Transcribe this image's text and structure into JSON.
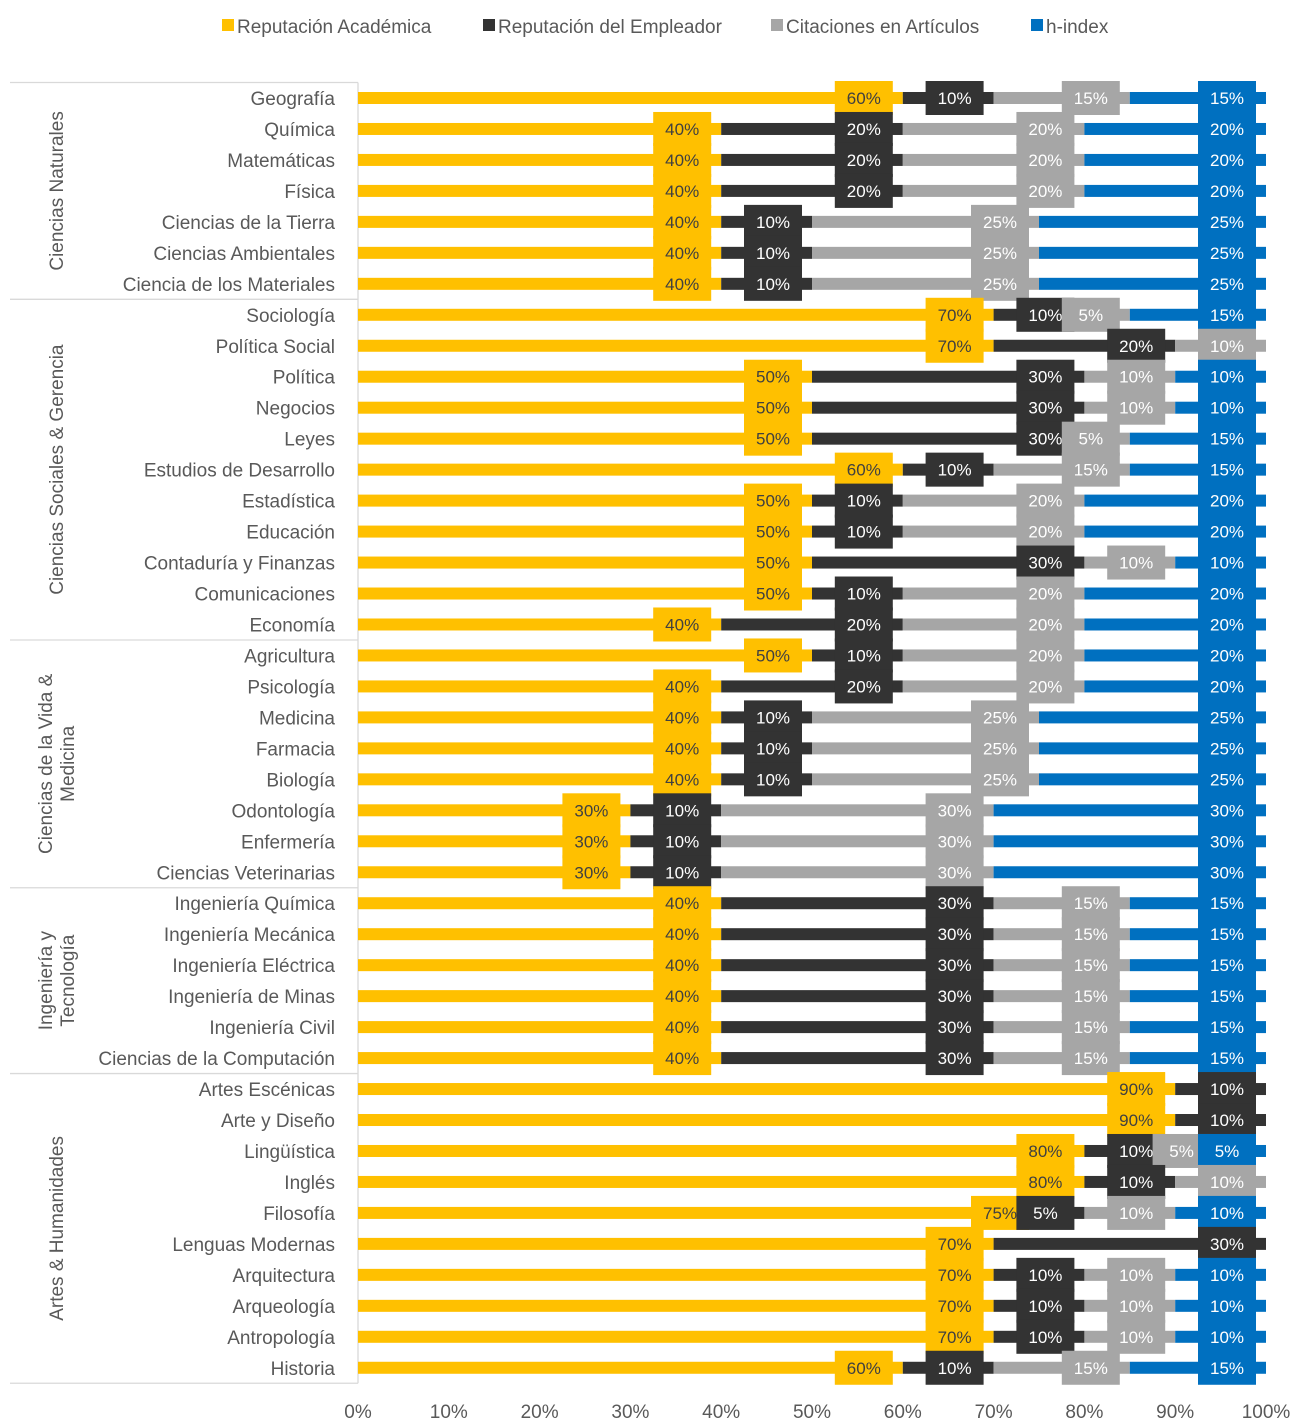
{
  "colors": {
    "Reputación Académica": "#FFC000",
    "Reputación del Empleador": "#333333",
    "Citaciones en Artículos": "#A6A6A6",
    "h-index": "#0070C0"
  },
  "chart_data": {
    "type": "bar",
    "orientation": "horizontal",
    "stacked": "percent",
    "legend_position": "top",
    "grid": false,
    "xlim": [
      0,
      100
    ],
    "x_ticks": [
      "0%",
      "10%",
      "20%",
      "30%",
      "40%",
      "50%",
      "60%",
      "70%",
      "80%",
      "90%",
      "100%"
    ],
    "series_names": [
      "Reputación Académica",
      "Reputación del Empleador",
      "Citaciones en Artículos",
      "h-index"
    ],
    "groups": [
      {
        "name": "Ciencias Naturales",
        "categories": [
          {
            "name": "Geografía",
            "values": [
              60,
              10,
              15,
              15
            ]
          },
          {
            "name": "Química",
            "values": [
              40,
              20,
              20,
              20
            ]
          },
          {
            "name": "Matemáticas",
            "values": [
              40,
              20,
              20,
              20
            ]
          },
          {
            "name": "Física",
            "values": [
              40,
              20,
              20,
              20
            ]
          },
          {
            "name": "Ciencias de la Tierra",
            "values": [
              40,
              10,
              25,
              25
            ]
          },
          {
            "name": "Ciencias Ambientales",
            "values": [
              40,
              10,
              25,
              25
            ]
          },
          {
            "name": "Ciencia de los Materiales",
            "values": [
              40,
              10,
              25,
              25
            ]
          }
        ]
      },
      {
        "name": "Ciencias Sociales & Gerencia",
        "categories": [
          {
            "name": "Sociología",
            "values": [
              70,
              10,
              5,
              15
            ]
          },
          {
            "name": "Política Social",
            "values": [
              70,
              20,
              10,
              0
            ]
          },
          {
            "name": "Política",
            "values": [
              50,
              30,
              10,
              10
            ]
          },
          {
            "name": "Negocios",
            "values": [
              50,
              30,
              10,
              10
            ]
          },
          {
            "name": "Leyes",
            "values": [
              50,
              30,
              5,
              15
            ]
          },
          {
            "name": "Estudios de Desarrollo",
            "values": [
              60,
              10,
              15,
              15
            ]
          },
          {
            "name": "Estadística",
            "values": [
              50,
              10,
              20,
              20
            ]
          },
          {
            "name": "Educación",
            "values": [
              50,
              10,
              20,
              20
            ]
          },
          {
            "name": "Contaduría y Finanzas",
            "values": [
              50,
              30,
              10,
              10
            ]
          },
          {
            "name": "Comunicaciones",
            "values": [
              50,
              10,
              20,
              20
            ]
          },
          {
            "name": "Economía",
            "values": [
              40,
              20,
              20,
              20
            ]
          }
        ]
      },
      {
        "name": "Ciencias de la Vida & Medicina",
        "categories": [
          {
            "name": "Agricultura",
            "values": [
              50,
              10,
              20,
              20
            ]
          },
          {
            "name": "Psicología",
            "values": [
              40,
              20,
              20,
              20
            ]
          },
          {
            "name": "Medicina",
            "values": [
              40,
              10,
              25,
              25
            ]
          },
          {
            "name": "Farmacia",
            "values": [
              40,
              10,
              25,
              25
            ]
          },
          {
            "name": "Biología",
            "values": [
              40,
              10,
              25,
              25
            ]
          },
          {
            "name": "Odontología",
            "values": [
              30,
              10,
              30,
              30
            ]
          },
          {
            "name": "Enfermería",
            "values": [
              30,
              10,
              30,
              30
            ]
          },
          {
            "name": "Ciencias Veterinarias",
            "values": [
              30,
              10,
              30,
              30
            ]
          }
        ]
      },
      {
        "name": "Ingeniería y Tecnología",
        "categories": [
          {
            "name": "Ingeniería Química",
            "values": [
              40,
              30,
              15,
              15
            ]
          },
          {
            "name": "Ingeniería Mecánica",
            "values": [
              40,
              30,
              15,
              15
            ]
          },
          {
            "name": "Ingeniería Eléctrica",
            "values": [
              40,
              30,
              15,
              15
            ]
          },
          {
            "name": "Ingeniería de Minas",
            "values": [
              40,
              30,
              15,
              15
            ]
          },
          {
            "name": "Ingeniería Civil",
            "values": [
              40,
              30,
              15,
              15
            ]
          },
          {
            "name": "Ciencias de la Computación",
            "values": [
              40,
              30,
              15,
              15
            ]
          }
        ]
      },
      {
        "name": "Artes & Humanidades",
        "categories": [
          {
            "name": "Artes Escénicas",
            "values": [
              90,
              10,
              0,
              0
            ]
          },
          {
            "name": "Arte y Diseño",
            "values": [
              90,
              10,
              0,
              0
            ]
          },
          {
            "name": "Lingüística",
            "values": [
              80,
              10,
              5,
              5
            ]
          },
          {
            "name": "Inglés",
            "values": [
              80,
              10,
              10,
              0
            ]
          },
          {
            "name": "Filosofía",
            "values": [
              75,
              5,
              10,
              10
            ]
          },
          {
            "name": "Lenguas Modernas",
            "values": [
              70,
              30,
              0,
              0
            ]
          },
          {
            "name": "Arquitectura",
            "values": [
              70,
              10,
              10,
              10
            ]
          },
          {
            "name": "Arqueología",
            "values": [
              70,
              10,
              10,
              10
            ]
          },
          {
            "name": "Antropología",
            "values": [
              70,
              10,
              10,
              10
            ]
          },
          {
            "name": "Historia",
            "values": [
              60,
              10,
              15,
              15
            ]
          }
        ]
      }
    ]
  }
}
